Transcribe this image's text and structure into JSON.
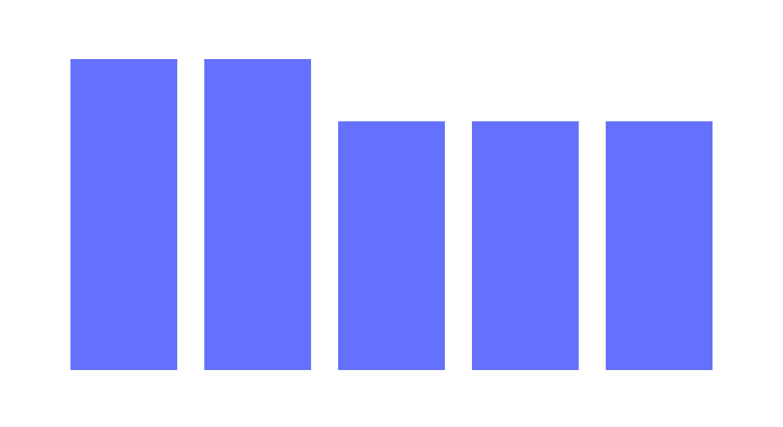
{
  "chart_data": {
    "type": "bar",
    "values": [
      5,
      5,
      4,
      4,
      4
    ],
    "ylim": [
      0,
      5
    ],
    "grid": false,
    "legend": "none",
    "bar_color": "#6571FC"
  }
}
